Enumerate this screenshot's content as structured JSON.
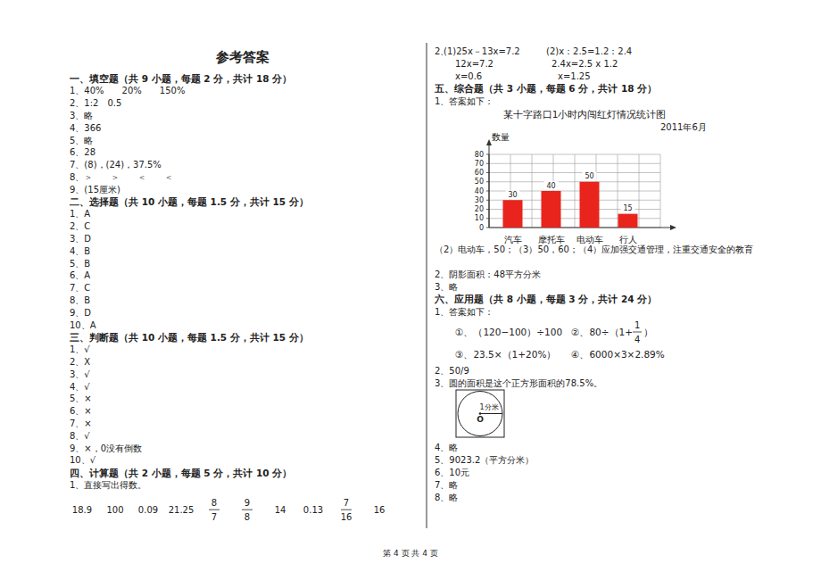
{
  "left": {
    "title": "参考答案",
    "sections": [
      {
        "heading": "一、填空题（共 9 小题，每题 2 分，共计 18 分）",
        "items": [
          "1、40%　　20%　　150%",
          "2、1:2　0.5",
          "3、略",
          "4、366",
          "5、略",
          "6、28",
          "7、(8)，(24)，37.5%",
          "8、＞　　＞　　＜　　＜",
          "9、(15厘米)"
        ]
      },
      {
        "heading": "二、选择题（共 10 小题，每题 1.5 分，共计 15 分）",
        "items": [
          "1、A",
          "2、C",
          "3、D",
          "4、B",
          "5、B",
          "6、A",
          "7、C",
          "8、B",
          "9、D",
          "10、A"
        ]
      },
      {
        "heading": "三、判断题（共 10 小题，每题 1.5 分，共计 15 分）",
        "items": [
          "1、√",
          "2、X",
          "3、√",
          "4、√",
          "5、×",
          "6、×",
          "7、×",
          "8、√",
          "9、×，0没有倒数",
          "10、√"
        ]
      },
      {
        "heading": "四、计算题（共 2 小题，每题 5 分，共计 10 分）",
        "items": [
          "1、直接写出得数。"
        ],
        "answers": [
          "18.9",
          "100",
          "0.09",
          "21.25",
          {
            "num": "8",
            "den": "7"
          },
          {
            "num": "9",
            "den": "8"
          },
          "14",
          "0.13",
          {
            "num": "7",
            "den": "16"
          },
          "16"
        ]
      }
    ]
  },
  "right": {
    "equations": {
      "label": "2、",
      "left": [
        "(1)25x－13x=7.2",
        "12x=7.2",
        "x=0.6"
      ],
      "right": [
        "(2)x：2.5=1.2：2.4",
        "2.4x=2.5 x 1.2",
        "x=1.25"
      ]
    },
    "section5": {
      "heading": "五、综合题（共 3 小题，每题 6 分，共计 18 分）",
      "intro": "1、答案如下：",
      "after_chart": [
        "（2）电动车，50；（3）50，60；（4）应加强交通管理，注重交通安全的教育",
        "2、阴影面积：48平方分米",
        "3、略"
      ]
    },
    "section6": {
      "heading": "六、应用题（共 8 小题，每题 3 分，共计 24 分）",
      "intro": "1、答案如下：",
      "formulas": [
        {
          "text": "①、（120−100）÷100"
        },
        {
          "prefix": "②、80÷（1+",
          "num": "1",
          "den": "4",
          "suffix": "）"
        },
        {
          "text": "③、23.5×（1+20%）"
        },
        {
          "text": "④、6000×3×2.89%"
        }
      ],
      "items_before": [
        "2、50/9",
        "3、圆的面积是这个正方形面积的78.5%。"
      ],
      "diagram": {
        "radius_label": "1分米",
        "center_label": "O"
      },
      "items_after": [
        "4、略",
        "5、9023.2（平方分米）",
        "6、10元",
        "7、略",
        "8、略"
      ]
    }
  },
  "footer": "第 4 页 共 4 页",
  "chart_data": {
    "type": "bar",
    "title": "某十字路口1小时内闯红灯情况统计图",
    "subtitle": "2011年6月",
    "y_label": "数量",
    "categories": [
      "汽车",
      "摩托车",
      "电动车",
      "行人"
    ],
    "values": [
      30,
      40,
      50,
      15
    ],
    "color": "#e8241c",
    "ylim": [
      0,
      80
    ],
    "yticks": [
      0,
      10,
      20,
      30,
      40,
      50,
      60,
      70,
      80
    ],
    "grid": true,
    "data_labels": true
  }
}
